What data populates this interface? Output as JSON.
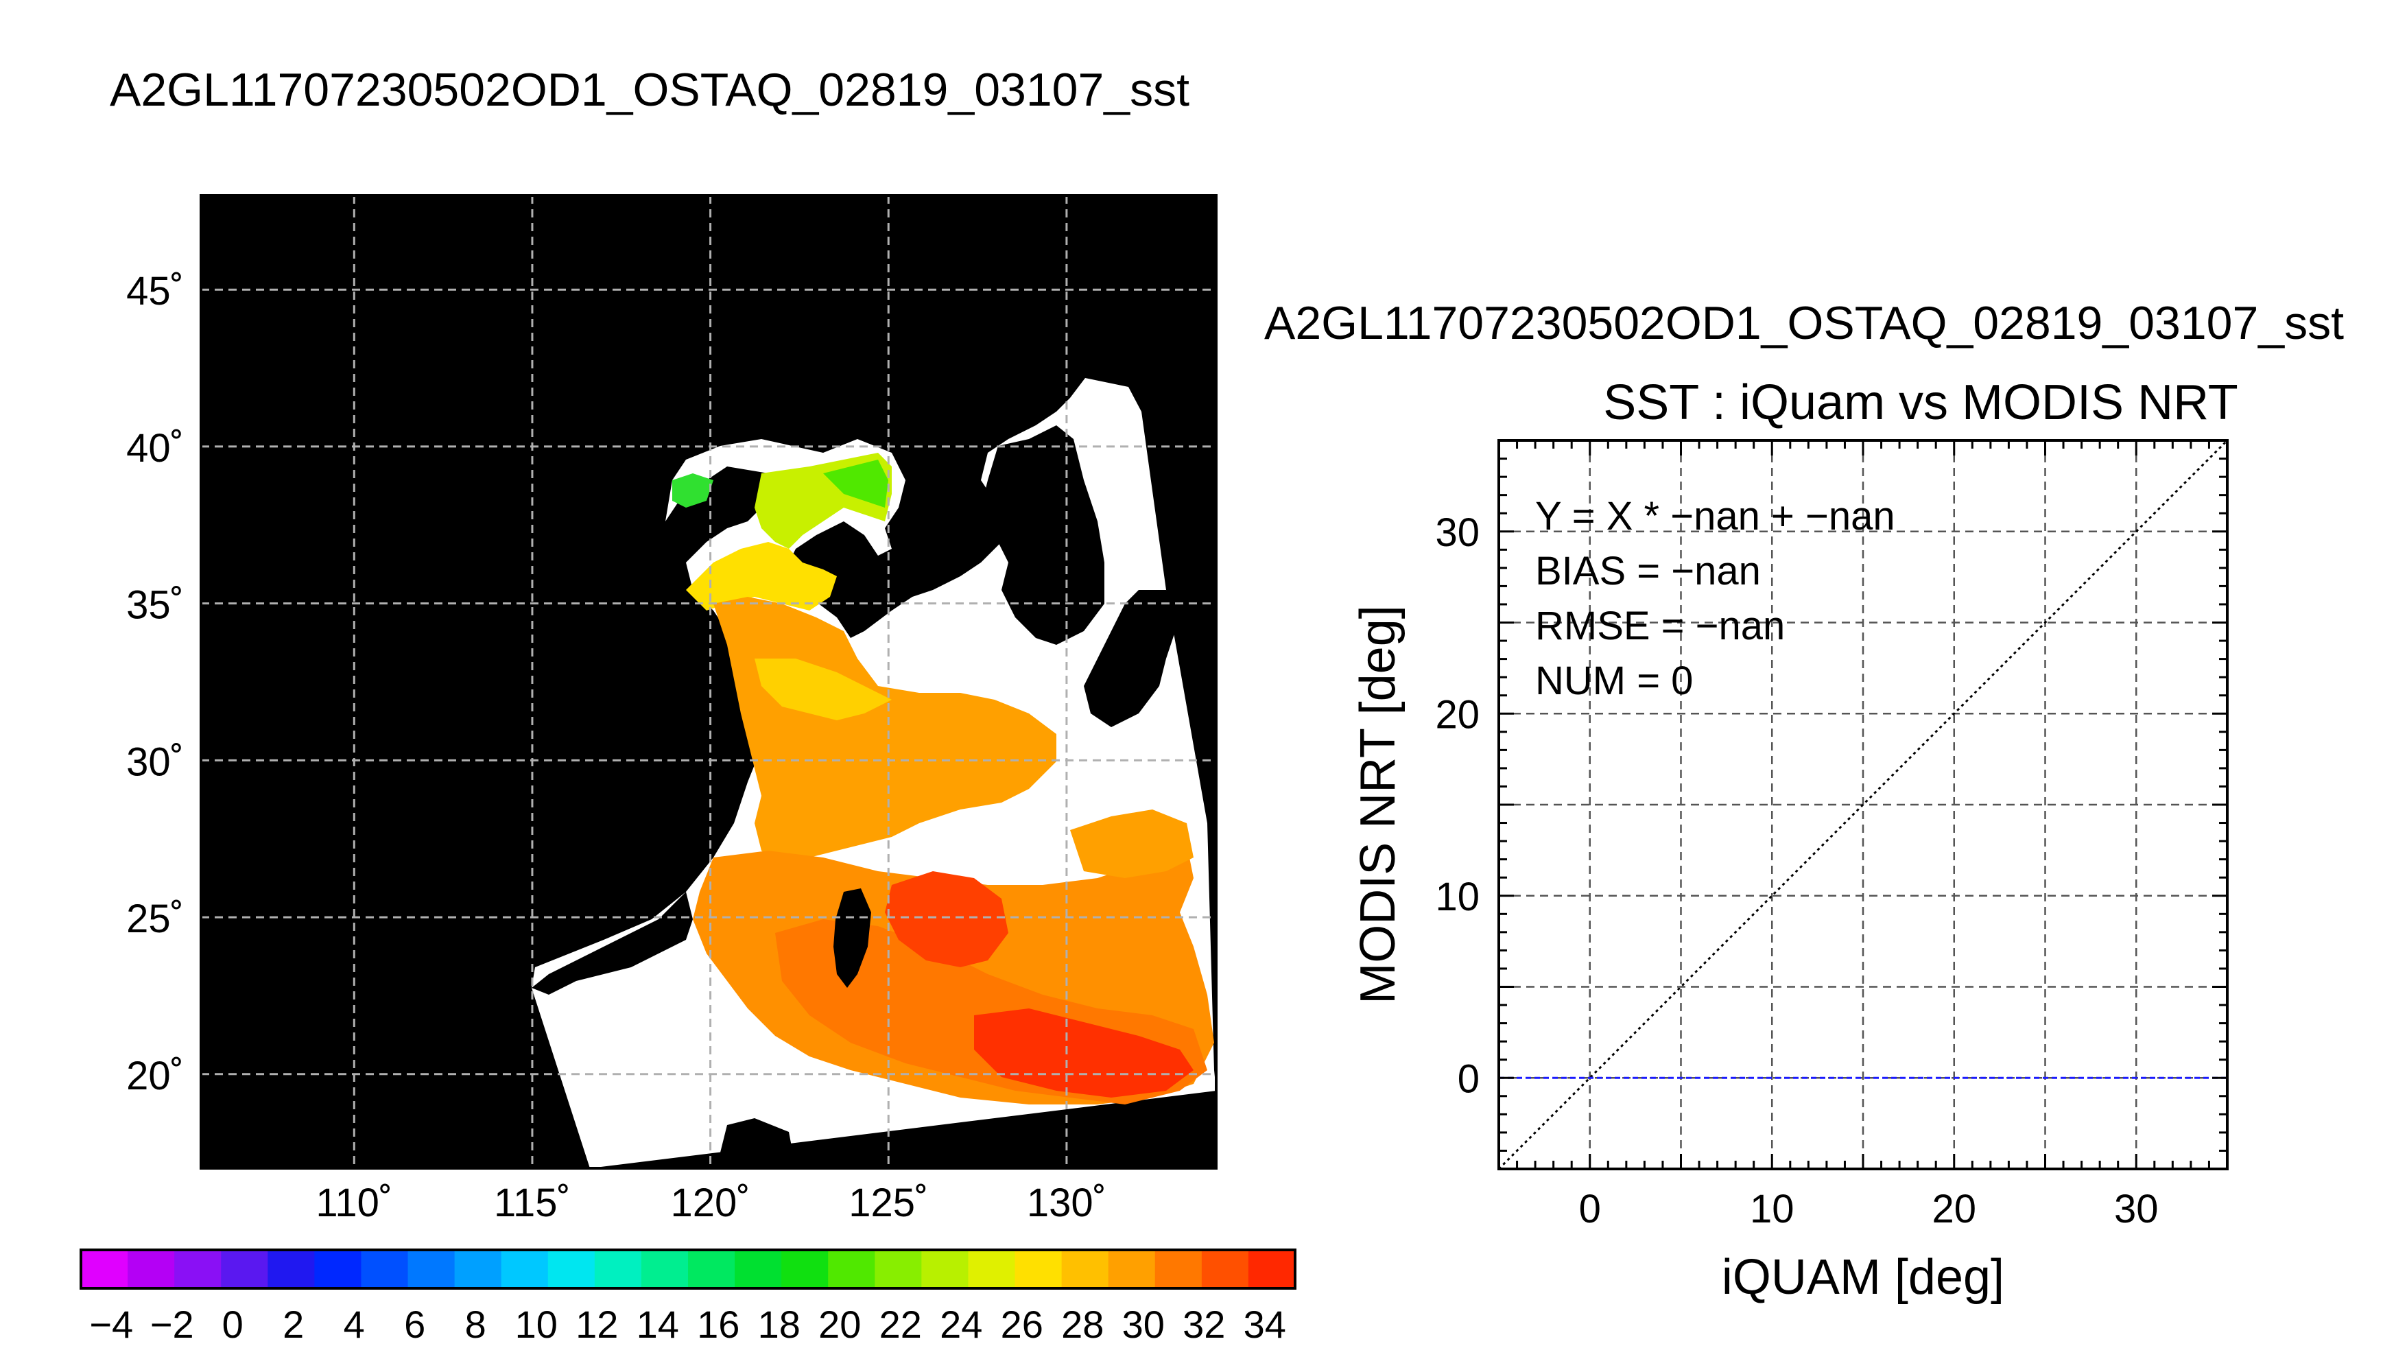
{
  "map_panel": {
    "title": "A2GL11707230502OD1_OSTAQ_02819_03107_sst",
    "lat_ticks": [
      {
        "value": 45,
        "label": "45˚"
      },
      {
        "value": 40,
        "label": "40˚"
      },
      {
        "value": 35,
        "label": "35˚"
      },
      {
        "value": 30,
        "label": "30˚"
      },
      {
        "value": 25,
        "label": "25˚"
      },
      {
        "value": 20,
        "label": "20˚"
      }
    ],
    "lon_ticks": [
      {
        "value": 110,
        "label": "110˚"
      },
      {
        "value": 115,
        "label": "115˚"
      },
      {
        "value": 120,
        "label": "120˚"
      },
      {
        "value": 125,
        "label": "125˚"
      },
      {
        "value": 130,
        "label": "130˚"
      }
    ],
    "lat_range": [
      17,
      48
    ],
    "lon_range": [
      105.7,
      134.2
    ],
    "colors": {
      "land": "#000000",
      "no_data": "#ffffff",
      "grid": "#b0b0b0"
    }
  },
  "colorbar": {
    "min": -5,
    "max": 35,
    "tick_labels": [
      "−4",
      "−2",
      "0",
      "2",
      "4",
      "6",
      "8",
      "10",
      "12",
      "14",
      "16",
      "18",
      "20",
      "22",
      "24",
      "26",
      "28",
      "30",
      "32",
      "34"
    ],
    "colors": [
      "#e000ff",
      "#b400f5",
      "#8a10f5",
      "#5a18f0",
      "#2018f0",
      "#0028ff",
      "#0050ff",
      "#0078ff",
      "#00a0ff",
      "#00c8ff",
      "#00e6f0",
      "#00f0c0",
      "#00ee90",
      "#00e860",
      "#00e030",
      "#10e010",
      "#50e800",
      "#88ee00",
      "#b8f000",
      "#e0f000",
      "#ffe000",
      "#ffc000",
      "#ffa000",
      "#ff7800",
      "#ff5000",
      "#ff2800"
    ]
  },
  "chart_data": {
    "type": "scatter",
    "file_title": "A2GL11707230502OD1_OSTAQ_02819_03107_sst",
    "title": "SST : iQuam vs MODIS NRT",
    "xlabel": "iQUAM [deg]",
    "ylabel": "MODIS NRT [deg]",
    "xlim": [
      -5,
      35
    ],
    "ylim": [
      -5,
      35
    ],
    "xticks": [
      0,
      10,
      20,
      30
    ],
    "yticks": [
      0,
      10,
      20,
      30
    ],
    "grid": true,
    "points": [],
    "reference_lines": [
      {
        "name": "one-to-one",
        "x": [
          -5,
          35
        ],
        "y": [
          -5,
          35
        ],
        "color": "#000000",
        "style": "dotted"
      },
      {
        "name": "fit",
        "x": [
          -5,
          35
        ],
        "y": [
          0,
          0
        ],
        "color": "#1a1aff",
        "style": "dashed"
      }
    ],
    "annotations": [
      "Y = X * −nan + −nan",
      "BIAS = −nan",
      "RMSE = −nan",
      "NUM = 0"
    ]
  }
}
